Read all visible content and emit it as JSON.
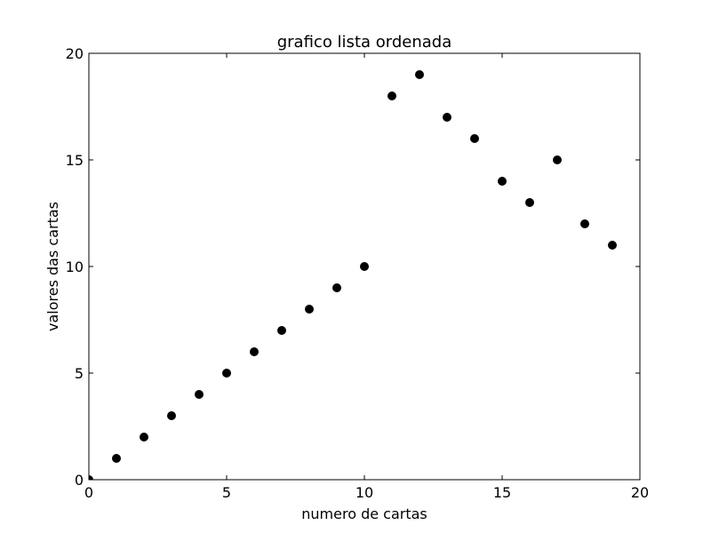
{
  "chart_data": {
    "type": "scatter",
    "title": "grafico lista ordenada",
    "xlabel": "numero de cartas",
    "ylabel": "valores das cartas",
    "xlim": [
      0,
      20
    ],
    "ylim": [
      0,
      20
    ],
    "xticks": [
      0,
      5,
      10,
      15,
      20
    ],
    "yticks": [
      0,
      5,
      10,
      15,
      20
    ],
    "grid": false,
    "marker_color": "#000000",
    "series": [
      {
        "x": [
          0,
          1,
          2,
          3,
          4,
          5,
          6,
          7,
          8,
          9,
          10,
          11,
          12,
          13,
          14,
          15,
          16,
          17,
          18,
          19
        ],
        "y": [
          0,
          1,
          2,
          3,
          4,
          5,
          6,
          7,
          8,
          9,
          10,
          18,
          19,
          17,
          16,
          14,
          13,
          15,
          12,
          11
        ]
      }
    ]
  }
}
